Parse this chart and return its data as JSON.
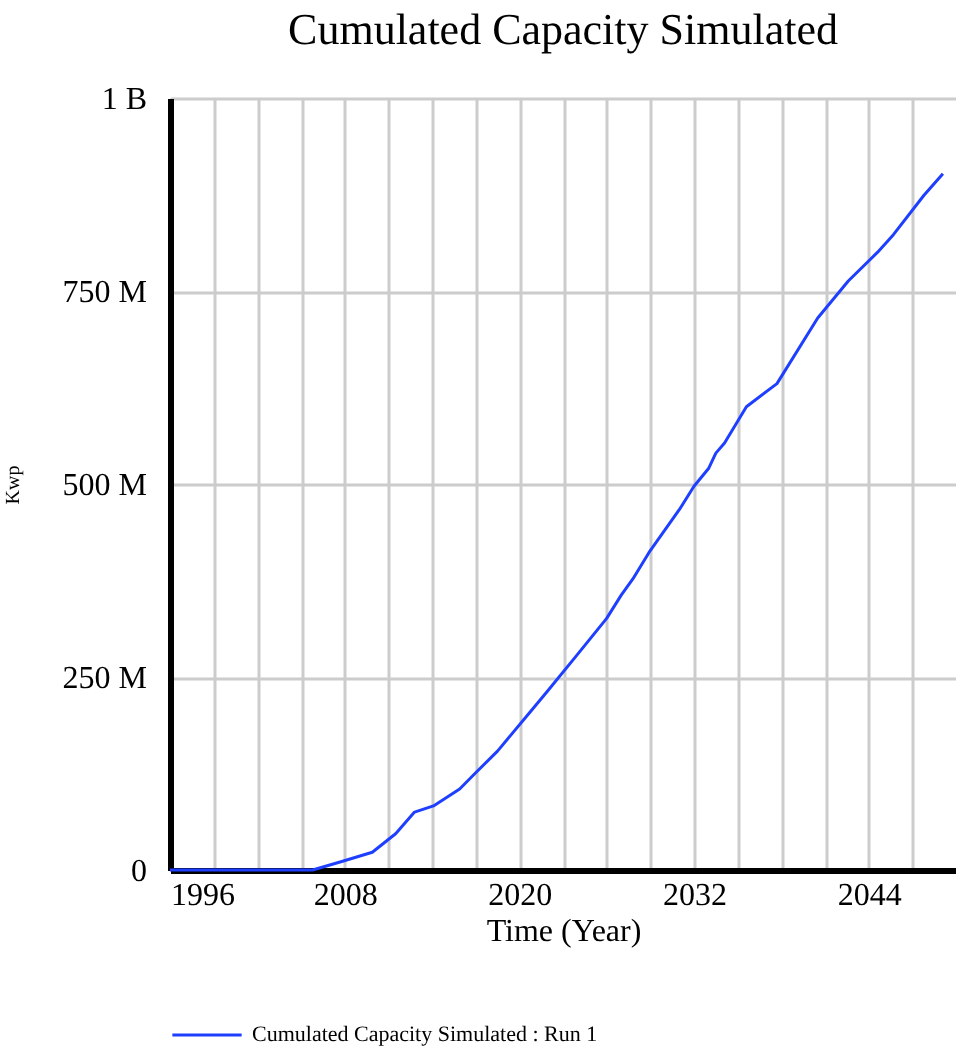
{
  "chart_data": {
    "type": "line",
    "title": "Cumulated Capacity Simulated",
    "xlabel": "Time (Year)",
    "ylabel": "Kwp",
    "x": [
      1996,
      2005.8,
      2007.8,
      2009.9,
      2011.5,
      2012.8,
      2014.1,
      2015.9,
      2016.9,
      2018.5,
      2020.8,
      2021.9,
      2023.9,
      2026,
      2027,
      2027.8,
      2028.9,
      2031,
      2032,
      2033,
      2033.5,
      2034.1,
      2035.6,
      2037.7,
      2040.5,
      2042.6,
      2044.6,
      2045.7,
      2047.8,
      2049.1
    ],
    "series": [
      {
        "name": "Cumulated Capacity Simulated : Run 1",
        "color": "#1f3fff",
        "values": [
          0,
          0,
          11000000,
          23000000,
          47000000,
          75000000,
          83000000,
          105000000,
          124000000,
          154000000,
          206000000,
          231000000,
          277000000,
          326000000,
          356000000,
          377000000,
          411000000,
          467000000,
          497000000,
          520000000,
          540000000,
          553000000,
          600000000,
          630000000,
          715000000,
          763000000,
          800000000,
          823000000,
          874000000,
          902000000
        ]
      }
    ],
    "xlim": [
      1996,
      2050
    ],
    "xticks": [
      1996,
      {
        "value": 1999,
        "label": null
      },
      {
        "value": 2002,
        "label": null
      },
      {
        "value": 2005,
        "label": null
      },
      2008,
      {
        "value": 2011,
        "label": null
      },
      {
        "value": 2014,
        "label": null
      },
      {
        "value": 2017,
        "label": null
      },
      2020,
      {
        "value": 2023,
        "label": null
      },
      {
        "value": 2026,
        "label": null
      },
      {
        "value": 2029,
        "label": null
      },
      2032,
      {
        "value": 2035,
        "label": null
      },
      {
        "value": 2038,
        "label": null
      },
      {
        "value": 2041,
        "label": null
      },
      2044,
      {
        "value": 2047,
        "label": null
      }
    ],
    "ylim": [
      0,
      1000000000
    ],
    "yticks": [
      {
        "value": 0,
        "label": "0"
      },
      {
        "value": 250000000,
        "label": "250 M"
      },
      {
        "value": 500000000,
        "label": "500 M"
      },
      {
        "value": 750000000,
        "label": "750 M"
      },
      {
        "value": 1000000000,
        "label": "1 B"
      }
    ],
    "grid": true,
    "legend": "bottom",
    "marker": "none",
    "line_style": "solid"
  }
}
